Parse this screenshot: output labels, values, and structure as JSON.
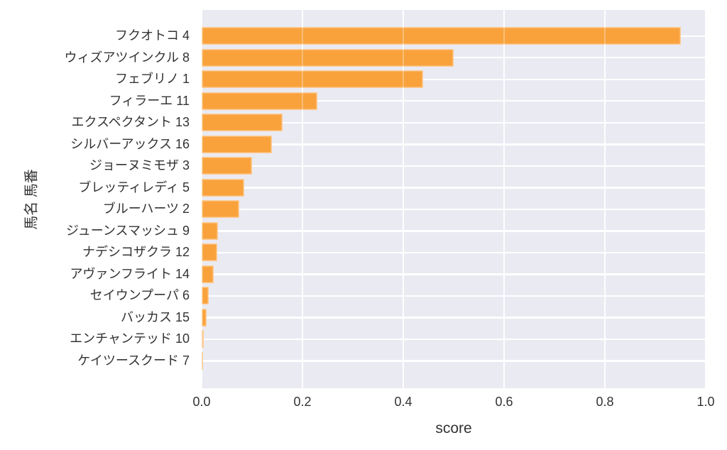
{
  "chart_data": {
    "type": "bar",
    "orientation": "horizontal",
    "title": "",
    "xlabel": "score",
    "ylabel": "馬名 馬番",
    "categories": [
      "フクオトコ 4",
      "ウィズアツインクル 8",
      "フェブリノ 1",
      "フィラーエ 11",
      "エクスペクタント 13",
      "シルバーアックス 16",
      "ジョーヌミモザ 3",
      "ブレッティレディ 5",
      "ブルーハーツ 2",
      "ジューンスマッシュ 9",
      "ナデシコザクラ 12",
      "アヴァンフライト 14",
      "セイウンプーパ 6",
      "バッカス 15",
      "エンチャンテッド 10",
      "ケイツースクード 7"
    ],
    "values": [
      0.95,
      0.5,
      0.44,
      0.23,
      0.16,
      0.14,
      0.1,
      0.085,
      0.075,
      0.032,
      0.031,
      0.024,
      0.014,
      0.01,
      0.004,
      0.002
    ],
    "xlim": [
      0.0,
      1.0
    ],
    "x_ticks": [
      "0.0",
      "0.2",
      "0.4",
      "0.6",
      "0.8",
      "1.0"
    ],
    "grid": true,
    "legend_position": "none",
    "colors": {
      "bar": "#F9A23C",
      "plot_bg": "#EAEAF2",
      "grid": "#FFFFFF",
      "text": "#333333"
    }
  }
}
